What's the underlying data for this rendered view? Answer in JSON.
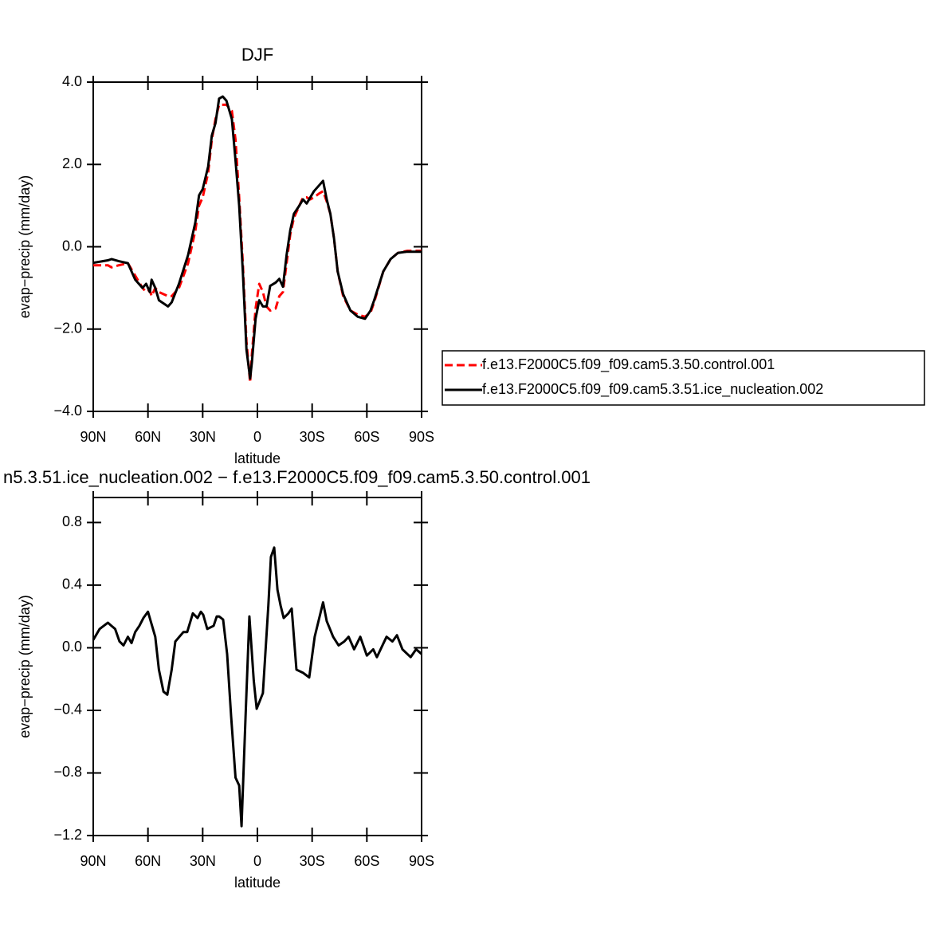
{
  "chart_data": [
    {
      "type": "line",
      "title": "DJF",
      "x_label": "latitude",
      "y_label": "evap−precip (mm/day)",
      "xlim": [
        90,
        -90
      ],
      "ylim": [
        -4,
        4
      ],
      "xticks": [
        {
          "value": 90,
          "label": "90N"
        },
        {
          "value": 60,
          "label": "60N"
        },
        {
          "value": 30,
          "label": "30N"
        },
        0,
        {
          "value": -30,
          "label": "30S"
        },
        {
          "value": -60,
          "label": "60S"
        },
        {
          "value": -90,
          "label": "90S"
        }
      ],
      "yticks": [
        {
          "value": -4,
          "label": "−4.0"
        },
        {
          "value": -2,
          "label": "−2.0"
        },
        {
          "value": 0,
          "label": "0.0"
        },
        {
          "value": 2,
          "label": "2.0"
        },
        {
          "value": 4,
          "label": "4.0"
        }
      ],
      "legend": "right",
      "x": [
        90,
        82,
        80,
        76,
        71,
        67,
        63,
        61,
        59,
        58,
        56,
        54,
        49,
        47,
        43,
        38,
        34,
        32,
        30,
        27,
        25,
        23,
        21,
        19,
        17,
        14,
        12,
        10,
        8,
        6,
        4,
        3,
        1,
        -1,
        -3,
        -5,
        -7,
        -10,
        -12,
        -14,
        -16,
        -18,
        -20,
        -23,
        -25,
        -27,
        -29,
        -31,
        -34,
        -36,
        -38,
        -40,
        -42,
        -44,
        -47,
        -51,
        -55,
        -59,
        -62,
        -64,
        -69,
        -73,
        -77,
        -82,
        -90
      ],
      "series": [
        {
          "name": "f.e13.F2000C5.f09_f09.cam5.3.50.control.001",
          "color": "#ff0000",
          "style": "dashed",
          "values": [
            -0.45,
            -0.45,
            -0.5,
            -0.45,
            -0.4,
            -0.7,
            -1.0,
            -1.1,
            -1.05,
            -1.2,
            -1.0,
            -1.1,
            -1.2,
            -1.2,
            -1.0,
            -0.4,
            0.4,
            1.0,
            1.2,
            1.8,
            2.6,
            3.1,
            3.45,
            3.45,
            3.45,
            3.3,
            2.6,
            1.2,
            -0.4,
            -2.3,
            -3.3,
            -2.6,
            -1.5,
            -0.9,
            -1.1,
            -1.45,
            -1.55,
            -1.5,
            -1.2,
            -1.1,
            -0.4,
            0.3,
            0.7,
            1.0,
            1.2,
            1.2,
            1.15,
            1.2,
            1.3,
            1.35,
            1.1,
            0.8,
            0.2,
            -0.6,
            -1.2,
            -1.55,
            -1.65,
            -1.7,
            -1.6,
            -1.35,
            -0.6,
            -0.3,
            -0.15,
            -0.1,
            -0.1
          ]
        },
        {
          "name": "f.e13.F2000C5.f09_f09.cam5.3.51.ice_nucleation.002",
          "color": "#000000",
          "style": "solid",
          "values": [
            -0.39,
            -0.33,
            -0.3,
            -0.35,
            -0.4,
            -0.8,
            -1.0,
            -0.9,
            -1.1,
            -0.8,
            -1.0,
            -1.3,
            -1.45,
            -1.35,
            -0.9,
            -0.2,
            0.6,
            1.25,
            1.4,
            1.95,
            2.7,
            3.0,
            3.6,
            3.65,
            3.55,
            3.1,
            2.1,
            1.0,
            -0.6,
            -2.5,
            -3.2,
            -2.8,
            -1.75,
            -1.3,
            -1.45,
            -1.45,
            -0.95,
            -0.87,
            -0.78,
            -0.97,
            -0.2,
            0.4,
            0.8,
            1.0,
            1.15,
            1.05,
            1.2,
            1.35,
            1.5,
            1.6,
            1.15,
            0.8,
            0.2,
            -0.6,
            -1.15,
            -1.55,
            -1.7,
            -1.75,
            -1.55,
            -1.3,
            -0.6,
            -0.3,
            -0.15,
            -0.12,
            -0.12
          ]
        }
      ]
    },
    {
      "type": "line",
      "title": "n5.3.51.ice_nucleation.002 − f.e13.F2000C5.f09_f09.cam5.3.50.control.001",
      "x_label": "latitude",
      "y_label": "evap−precip (mm/day)",
      "xlim": [
        90,
        -90
      ],
      "ylim": [
        -1.2,
        0.96
      ],
      "xticks": [
        {
          "value": 90,
          "label": "90N"
        },
        {
          "value": 60,
          "label": "60N"
        },
        {
          "value": 30,
          "label": "30N"
        },
        0,
        {
          "value": -30,
          "label": "30S"
        },
        {
          "value": -60,
          "label": "60S"
        },
        {
          "value": -90,
          "label": "90S"
        }
      ],
      "yticks": [
        {
          "value": -1.2,
          "label": "−1.2"
        },
        {
          "value": -0.8,
          "label": "−0.8"
        },
        {
          "value": -0.4,
          "label": "−0.4"
        },
        {
          "value": 0,
          "label": "0.0"
        },
        {
          "value": 0.4,
          "label": "0.4"
        },
        {
          "value": 0.8,
          "label": "0.8"
        }
      ],
      "x": [
        90,
        86.5,
        82,
        80,
        78,
        75.6,
        73.4,
        71,
        69,
        67,
        64.7,
        62.5,
        60,
        56,
        54,
        51.5,
        49.4,
        47,
        45,
        40.6,
        38.5,
        35.4,
        32.8,
        31,
        29.7,
        27.5,
        24,
        22.3,
        21,
        18.8,
        16.6,
        14.4,
        12,
        10,
        8.7,
        6.5,
        4.4,
        2,
        0.4,
        -3,
        -6,
        -7.4,
        -9.2,
        -11,
        -12.7,
        -14.4,
        -17,
        -18.8,
        -21.4,
        -25,
        -28.4,
        -31.4,
        -36,
        -38,
        -41.5,
        -44.5,
        -47.6,
        -50,
        -53,
        -56.4,
        -60,
        -63.5,
        -65.5,
        -70.8,
        -74,
        -76.5,
        -79.5,
        -84,
        -87,
        -90
      ],
      "series": [
        {
          "color": "#000000",
          "style": "solid",
          "values": [
            0.05,
            0.12,
            0.16,
            0.14,
            0.12,
            0.04,
            0.015,
            0.07,
            0.03,
            0.1,
            0.14,
            0.19,
            0.23,
            0.07,
            -0.14,
            -0.28,
            -0.3,
            -0.14,
            0.04,
            0.1,
            0.1,
            0.22,
            0.19,
            0.23,
            0.21,
            0.12,
            0.14,
            0.2,
            0.2,
            0.18,
            -0.04,
            -0.44,
            -0.83,
            -0.88,
            -1.14,
            -0.44,
            0.2,
            -0.21,
            -0.39,
            -0.29,
            0.27,
            0.58,
            0.64,
            0.37,
            0.27,
            0.19,
            0.22,
            0.25,
            -0.14,
            -0.16,
            -0.19,
            0.07,
            0.29,
            0.17,
            0.07,
            0.015,
            0.04,
            0.07,
            -0.01,
            0.07,
            -0.05,
            -0.01,
            -0.06,
            0.07,
            0.04,
            0.08,
            -0.01,
            -0.06,
            -0.01,
            -0.04
          ]
        }
      ]
    }
  ]
}
